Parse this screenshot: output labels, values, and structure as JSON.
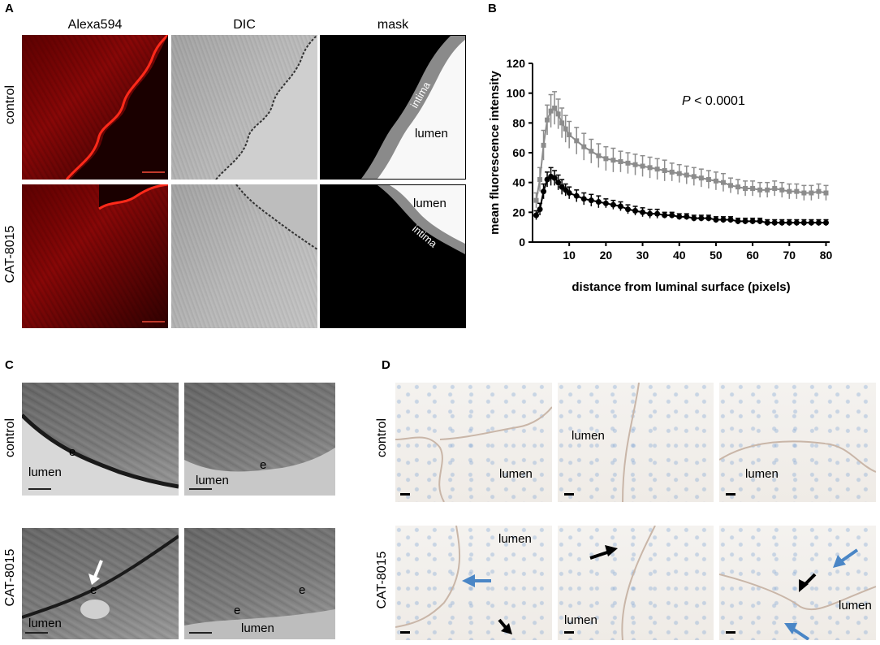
{
  "panels": {
    "a": {
      "label": "A",
      "columns": [
        "Alexa594",
        "DIC",
        "mask"
      ],
      "rows": [
        "control",
        "CAT-8015"
      ],
      "mask_labels": {
        "intima": "intima",
        "lumen": "lumen"
      }
    },
    "b": {
      "label": "B",
      "pvalue_italic": "P",
      "pvalue_rest": " < 0.0001"
    },
    "c": {
      "label": "C",
      "rows": [
        "control",
        "CAT-8015"
      ],
      "e": "e",
      "lumen": "lumen"
    },
    "d": {
      "label": "D",
      "rows": [
        "control",
        "CAT-8015"
      ],
      "lumen": "lumen"
    }
  },
  "colors": {
    "gray_series": "#8c8c8c",
    "black_series": "#000000",
    "arrow_blue": "#4a86c6",
    "scale_red": "#c0392b"
  },
  "chart_data": {
    "type": "line",
    "xlabel": "distance from luminal surface (pixels)",
    "ylabel": "mean fluorescence intensity",
    "xlim": [
      0,
      81
    ],
    "ylim": [
      0,
      120
    ],
    "xticks": [
      10,
      20,
      30,
      40,
      50,
      60,
      70,
      80
    ],
    "yticks": [
      0,
      20,
      40,
      60,
      80,
      100,
      120
    ],
    "grid": false,
    "series": [
      {
        "color": "#8c8c8c",
        "x": [
          1,
          2,
          3,
          4,
          5,
          6,
          7,
          8,
          9,
          10,
          12,
          14,
          16,
          18,
          20,
          22,
          24,
          26,
          28,
          30,
          32,
          34,
          36,
          38,
          40,
          42,
          44,
          46,
          48,
          50,
          52,
          54,
          56,
          58,
          60,
          62,
          64,
          66,
          68,
          70,
          72,
          74,
          76,
          78,
          80
        ],
        "y": [
          28,
          42,
          65,
          82,
          88,
          90,
          86,
          80,
          76,
          72,
          68,
          64,
          61,
          58,
          56,
          55,
          54,
          53,
          52,
          51,
          50,
          49,
          48,
          47,
          46,
          45,
          44,
          43,
          42,
          41,
          40,
          38,
          37,
          36,
          36,
          35,
          35,
          36,
          35,
          34,
          34,
          33,
          33,
          34,
          33
        ],
        "err": [
          5,
          8,
          10,
          10,
          11,
          11,
          10,
          10,
          9,
          9,
          9,
          9,
          8,
          8,
          8,
          8,
          7,
          7,
          7,
          7,
          7,
          7,
          7,
          6,
          6,
          6,
          6,
          6,
          6,
          6,
          6,
          5,
          5,
          5,
          5,
          5,
          5,
          5,
          5,
          5,
          5,
          5,
          5,
          5,
          5
        ]
      },
      {
        "color": "#000000",
        "x": [
          1,
          2,
          3,
          4,
          5,
          6,
          7,
          8,
          9,
          10,
          12,
          14,
          16,
          18,
          20,
          22,
          24,
          26,
          28,
          30,
          32,
          34,
          36,
          38,
          40,
          42,
          44,
          46,
          48,
          50,
          52,
          54,
          56,
          58,
          60,
          62,
          64,
          66,
          68,
          70,
          72,
          74,
          76,
          78,
          80
        ],
        "y": [
          18,
          22,
          34,
          42,
          44,
          43,
          40,
          37,
          35,
          33,
          31,
          29,
          28,
          27,
          26,
          25,
          24,
          22,
          21,
          20,
          19,
          19,
          18,
          18,
          17,
          17,
          16,
          16,
          16,
          15,
          15,
          15,
          14,
          14,
          14,
          14,
          13,
          13,
          13,
          13,
          13,
          13,
          13,
          13,
          13
        ],
        "err": [
          3,
          4,
          5,
          5,
          6,
          5,
          5,
          5,
          4,
          4,
          4,
          4,
          4,
          4,
          3,
          3,
          3,
          3,
          3,
          3,
          3,
          3,
          2,
          2,
          2,
          2,
          2,
          2,
          2,
          2,
          2,
          2,
          2,
          2,
          2,
          2,
          2,
          2,
          2,
          2,
          2,
          2,
          2,
          2,
          2
        ]
      }
    ]
  }
}
